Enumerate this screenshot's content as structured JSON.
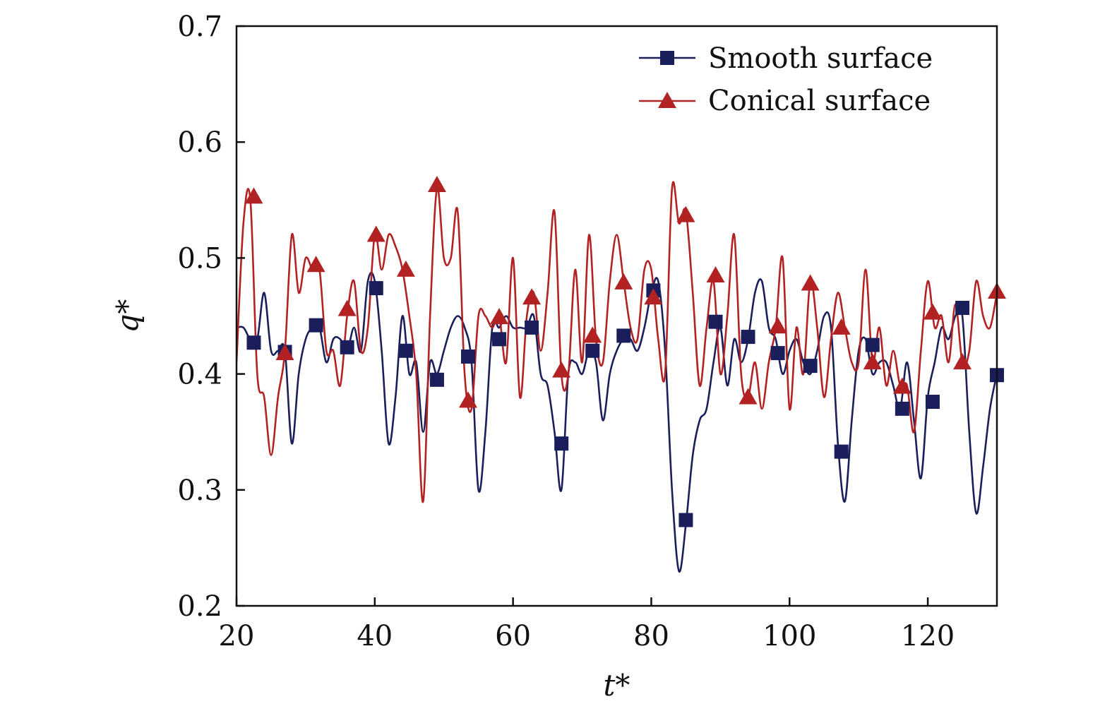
{
  "chart_data": {
    "type": "line",
    "title": "",
    "xlabel": "t*",
    "ylabel": "q*",
    "xlim": [
      20,
      130
    ],
    "ylim": [
      0.2,
      0.7
    ],
    "xticks": [
      20,
      40,
      60,
      80,
      100,
      120
    ],
    "xtick_labels": [
      "20",
      "40",
      "60",
      "80",
      "100",
      "120"
    ],
    "yticks": [
      0.2,
      0.3,
      0.4,
      0.5,
      0.6,
      0.7
    ],
    "ytick_labels": [
      "0.2",
      "0.3",
      "0.4",
      "0.5",
      "0.6",
      "0.7"
    ],
    "grid": false,
    "legend_position": "top-right",
    "series": [
      {
        "name": "Smooth surface",
        "color": "#1a1f5c",
        "marker": "square",
        "x": [
          20,
          21,
          22,
          23,
          24,
          25,
          26,
          27,
          28,
          29,
          30,
          31,
          32,
          33,
          34,
          35,
          36,
          37,
          38,
          39,
          40,
          41,
          42,
          43,
          44,
          45,
          46,
          47,
          48,
          49,
          50,
          51,
          52,
          53,
          54,
          55,
          56,
          57,
          58,
          59,
          60,
          61,
          62,
          63,
          64,
          65,
          66,
          67,
          68,
          69,
          70,
          71,
          72,
          73,
          74,
          75,
          76,
          77,
          78,
          79,
          80,
          81,
          82,
          83,
          84,
          85,
          86,
          87,
          88,
          89,
          90,
          91,
          92,
          93,
          94,
          95,
          96,
          97,
          98,
          99,
          100,
          101,
          102,
          103,
          104,
          105,
          106,
          107,
          108,
          109,
          110,
          111,
          112,
          113,
          114,
          115,
          116,
          117,
          118,
          119,
          120,
          121,
          122,
          123,
          124,
          125,
          126,
          127,
          128,
          129,
          130
        ],
        "y": [
          0.44,
          0.44,
          0.43,
          0.43,
          0.47,
          0.42,
          0.42,
          0.42,
          0.34,
          0.4,
          0.43,
          0.44,
          0.44,
          0.41,
          0.43,
          0.43,
          0.42,
          0.44,
          0.42,
          0.48,
          0.48,
          0.42,
          0.34,
          0.38,
          0.45,
          0.4,
          0.41,
          0.35,
          0.41,
          0.4,
          0.42,
          0.44,
          0.45,
          0.44,
          0.41,
          0.3,
          0.35,
          0.44,
          0.44,
          0.45,
          0.44,
          0.44,
          0.44,
          0.45,
          0.4,
          0.39,
          0.35,
          0.3,
          0.4,
          0.41,
          0.4,
          0.42,
          0.41,
          0.36,
          0.4,
          0.42,
          0.43,
          0.43,
          0.42,
          0.44,
          0.47,
          0.48,
          0.42,
          0.3,
          0.23,
          0.27,
          0.33,
          0.36,
          0.37,
          0.41,
          0.44,
          0.39,
          0.43,
          0.41,
          0.43,
          0.47,
          0.48,
          0.44,
          0.43,
          0.4,
          0.42,
          0.43,
          0.41,
          0.4,
          0.42,
          0.45,
          0.44,
          0.34,
          0.29,
          0.36,
          0.42,
          0.43,
          0.4,
          0.41,
          0.41,
          0.39,
          0.37,
          0.41,
          0.36,
          0.31,
          0.38,
          0.41,
          0.44,
          0.43,
          0.45,
          0.45,
          0.35,
          0.28,
          0.32,
          0.37,
          0.4
        ]
      },
      {
        "name": "Conical surface",
        "color": "#b22222",
        "marker": "triangle",
        "x": [
          20,
          21,
          22,
          23,
          24,
          25,
          26,
          27,
          28,
          29,
          30,
          31,
          32,
          33,
          34,
          35,
          36,
          37,
          38,
          39,
          40,
          41,
          42,
          43,
          44,
          45,
          46,
          47,
          48,
          49,
          50,
          51,
          52,
          53,
          54,
          55,
          56,
          57,
          58,
          59,
          60,
          61,
          62,
          63,
          64,
          65,
          66,
          67,
          68,
          69,
          70,
          71,
          72,
          73,
          74,
          75,
          76,
          77,
          78,
          79,
          80,
          81,
          82,
          83,
          84,
          85,
          86,
          87,
          88,
          89,
          90,
          91,
          92,
          93,
          94,
          95,
          96,
          97,
          98,
          99,
          100,
          101,
          102,
          103,
          104,
          105,
          106,
          107,
          108,
          109,
          110,
          111,
          112,
          113,
          114,
          115,
          116,
          117,
          118,
          119,
          120,
          121,
          122,
          123,
          124,
          125,
          126,
          127,
          128,
          129,
          130
        ],
        "y": [
          0.41,
          0.53,
          0.55,
          0.4,
          0.38,
          0.33,
          0.38,
          0.42,
          0.52,
          0.47,
          0.5,
          0.49,
          0.49,
          0.42,
          0.42,
          0.39,
          0.45,
          0.48,
          0.42,
          0.44,
          0.52,
          0.49,
          0.52,
          0.51,
          0.49,
          0.45,
          0.4,
          0.29,
          0.45,
          0.56,
          0.5,
          0.5,
          0.54,
          0.4,
          0.37,
          0.45,
          0.45,
          0.44,
          0.45,
          0.41,
          0.5,
          0.38,
          0.45,
          0.47,
          0.42,
          0.47,
          0.54,
          0.4,
          0.4,
          0.49,
          0.41,
          0.52,
          0.43,
          0.41,
          0.48,
          0.52,
          0.48,
          0.44,
          0.43,
          0.49,
          0.49,
          0.43,
          0.4,
          0.56,
          0.53,
          0.54,
          0.47,
          0.39,
          0.44,
          0.48,
          0.4,
          0.45,
          0.52,
          0.4,
          0.38,
          0.41,
          0.37,
          0.41,
          0.44,
          0.5,
          0.37,
          0.44,
          0.4,
          0.48,
          0.44,
          0.38,
          0.43,
          0.47,
          0.44,
          0.41,
          0.41,
          0.49,
          0.41,
          0.44,
          0.39,
          0.42,
          0.39,
          0.39,
          0.35,
          0.42,
          0.48,
          0.44,
          0.45,
          0.41,
          0.46,
          0.41,
          0.42,
          0.48,
          0.45,
          0.44,
          0.47
        ]
      }
    ],
    "markers": [
      {
        "series": "Smooth surface",
        "x": [
          22.5,
          27,
          31.5,
          36,
          40.2,
          44.5,
          49,
          53.5,
          58,
          62.7,
          67,
          71.5,
          76,
          80.3,
          85,
          89.3,
          94,
          98.3,
          103,
          107.5,
          112,
          116.3,
          120.7,
          125,
          130
        ],
        "y": [
          0.427,
          0.419,
          0.442,
          0.423,
          0.474,
          0.42,
          0.395,
          0.415,
          0.43,
          0.44,
          0.34,
          0.42,
          0.433,
          0.472,
          0.274,
          0.445,
          0.432,
          0.418,
          0.407,
          0.333,
          0.425,
          0.37,
          0.376,
          0.457,
          0.399
        ]
      },
      {
        "series": "Conical surface",
        "x": [
          22.5,
          27,
          31.5,
          36,
          40.2,
          44.5,
          49,
          53.5,
          58,
          62.7,
          67,
          71.5,
          76,
          80.3,
          85,
          89.3,
          94,
          98.3,
          103,
          107.5,
          112,
          116.3,
          120.7,
          125,
          130
        ],
        "y": [
          0.553,
          0.418,
          0.494,
          0.456,
          0.52,
          0.49,
          0.563,
          0.377,
          0.449,
          0.466,
          0.403,
          0.433,
          0.479,
          0.466,
          0.537,
          0.485,
          0.38,
          0.441,
          0.478,
          0.44,
          0.41,
          0.389,
          0.453,
          0.41,
          0.471
        ]
      }
    ]
  }
}
